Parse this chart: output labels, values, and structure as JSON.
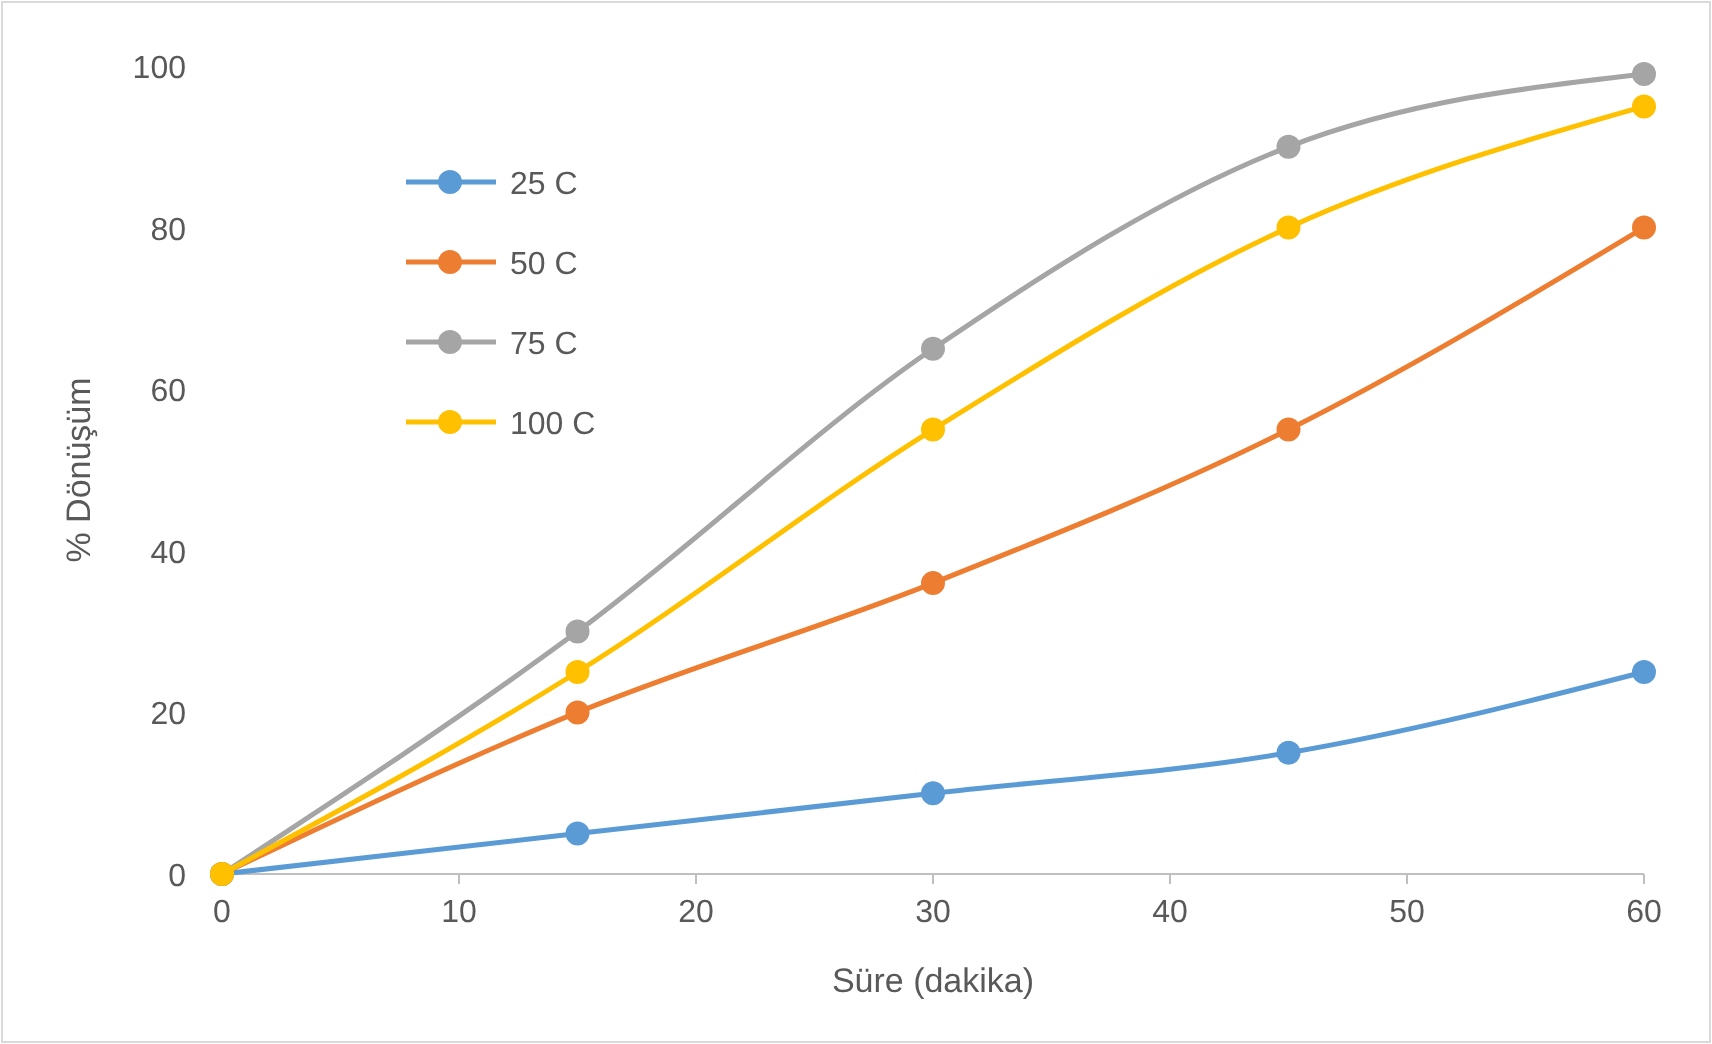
{
  "chart_data": {
    "type": "line",
    "xlabel": "Süre (dakika)",
    "ylabel": "% Dönüşüm",
    "x": [
      0,
      15,
      30,
      45,
      60
    ],
    "series": [
      {
        "name": "25 C",
        "color": "#5b9bd5",
        "values": [
          0,
          5,
          10,
          15,
          25
        ]
      },
      {
        "name": "50 C",
        "color": "#ed7d31",
        "values": [
          0,
          20,
          36,
          55,
          80
        ]
      },
      {
        "name": "75 C",
        "color": "#a5a5a5",
        "values": [
          0,
          30,
          65,
          90,
          99
        ]
      },
      {
        "name": "100 C",
        "color": "#ffc000",
        "values": [
          0,
          25,
          55,
          80,
          95
        ]
      }
    ],
    "xlim": [
      0,
      60
    ],
    "xticks": [
      0,
      10,
      20,
      30,
      40,
      50,
      60
    ],
    "ylim": [
      0,
      100
    ],
    "yticks": [
      0,
      20,
      40,
      60,
      80,
      100
    ],
    "grid": false,
    "legend": "top left",
    "marker": "circle",
    "line_style": "solid"
  }
}
